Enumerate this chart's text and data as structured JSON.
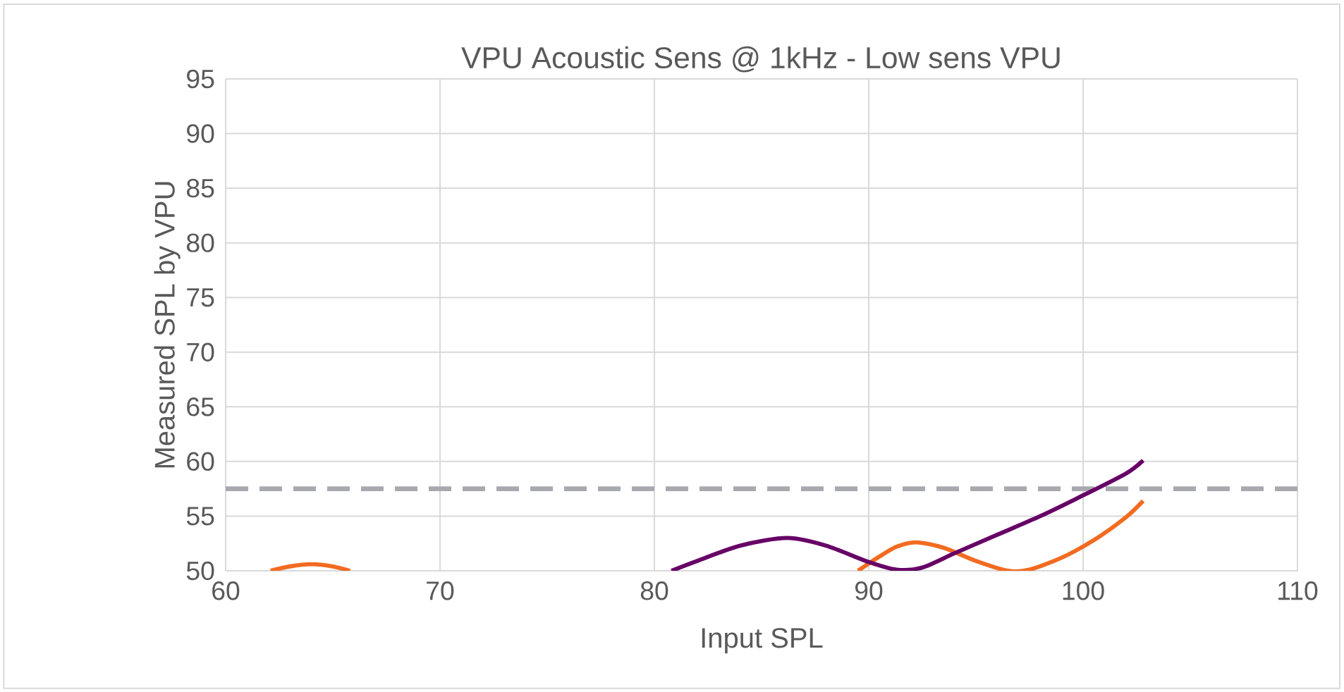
{
  "chart_data": {
    "type": "line",
    "title": "VPU Acoustic Sens @ 1kHz - Low sens VPU",
    "xlabel": "Input SPL",
    "ylabel": "Measured SPL by VPU",
    "xlim": [
      60,
      110
    ],
    "ylim": [
      50,
      95
    ],
    "xticks": [
      60,
      70,
      80,
      90,
      100,
      110
    ],
    "yticks": [
      50,
      55,
      60,
      65,
      70,
      75,
      80,
      85,
      90,
      95
    ],
    "grid": true,
    "line_style": "solid",
    "series": [
      {
        "color": "#f26b21",
        "x": [
          62.1,
          63,
          64,
          65,
          65.8,
          80,
          89.5,
          90.5,
          91.3,
          92.2,
          93.5,
          95,
          96.5,
          97.5,
          99,
          100.5,
          102,
          102.8
        ],
        "values": [
          50,
          50.4,
          50.6,
          50.4,
          50,
          null,
          50,
          51.3,
          52.2,
          52.6,
          52.1,
          50.9,
          50,
          50.1,
          51.2,
          52.8,
          54.9,
          56.4
        ]
      },
      {
        "color": "#660066",
        "x": [
          80.8,
          82,
          84,
          86.2,
          88,
          90,
          91.3,
          92.5,
          94,
          96,
          98,
          100,
          102,
          102.8
        ],
        "values": [
          50,
          50.9,
          52.3,
          53,
          52.3,
          50.8,
          50.1,
          50.3,
          51.6,
          53.3,
          55,
          56.9,
          58.9,
          60.1
        ]
      }
    ],
    "ref_lines": [
      {
        "axis": "y",
        "value": 57.5,
        "color": "#a6a9ad",
        "line_style": "dashed"
      }
    ]
  }
}
